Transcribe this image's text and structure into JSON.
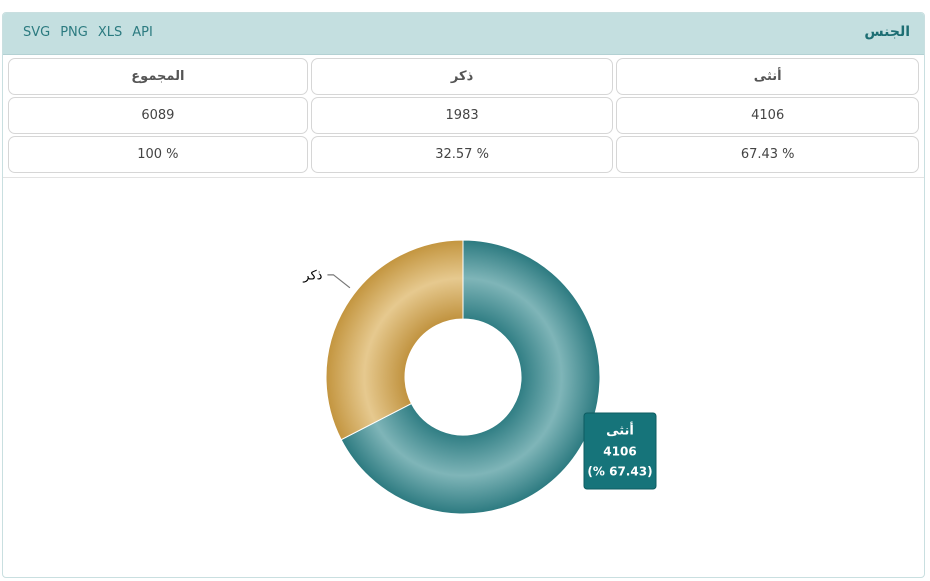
{
  "header": {
    "title": "الجنس",
    "links": [
      "SVG",
      "PNG",
      "XLS",
      "API"
    ]
  },
  "table": {
    "rows": [
      [
        "أنثى",
        "ذكر",
        "المجموع"
      ],
      [
        "4106",
        "1983",
        "6089"
      ],
      [
        "% 67.43",
        "% 32.57",
        "% 100"
      ]
    ]
  },
  "chart_data": {
    "type": "donut",
    "categories": [
      "أنثى",
      "ذكر"
    ],
    "values": [
      4106,
      1983
    ],
    "colors": [
      "#3f8d92",
      "#d1a757"
    ],
    "tooltip_percent": "(% 67.43)"
  }
}
